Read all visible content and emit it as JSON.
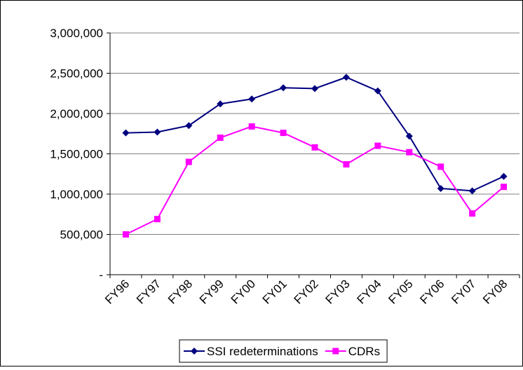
{
  "chart_data": {
    "type": "line",
    "categories": [
      "FY96",
      "FY97",
      "FY98",
      "FY99",
      "FY00",
      "FY01",
      "FY02",
      "FY03",
      "FY04",
      "FY05",
      "FY06",
      "FY07",
      "FY08"
    ],
    "series": [
      {
        "name": "SSI redeterminations",
        "color": "#000080",
        "marker": "diamond",
        "values": [
          1760000,
          1770000,
          1850000,
          2120000,
          2180000,
          2320000,
          2310000,
          2450000,
          2280000,
          1720000,
          1070000,
          1040000,
          1220000
        ]
      },
      {
        "name": "CDRs",
        "color": "#ff00ff",
        "marker": "square",
        "values": [
          500000,
          690000,
          1400000,
          1700000,
          1840000,
          1760000,
          1580000,
          1370000,
          1600000,
          1520000,
          1340000,
          760000,
          1090000
        ]
      }
    ],
    "ylim": [
      0,
      3000000
    ],
    "yticks": [
      {
        "value": 0,
        "label": "-"
      },
      {
        "value": 500000,
        "label": "500,000"
      },
      {
        "value": 1000000,
        "label": "1,000,000"
      },
      {
        "value": 1500000,
        "label": "1,500,000"
      },
      {
        "value": 2000000,
        "label": "2,000,000"
      },
      {
        "value": 2500000,
        "label": "2,500,000"
      },
      {
        "value": 3000000,
        "label": "3,000,000"
      }
    ],
    "grid": true,
    "legend": "bottom"
  }
}
